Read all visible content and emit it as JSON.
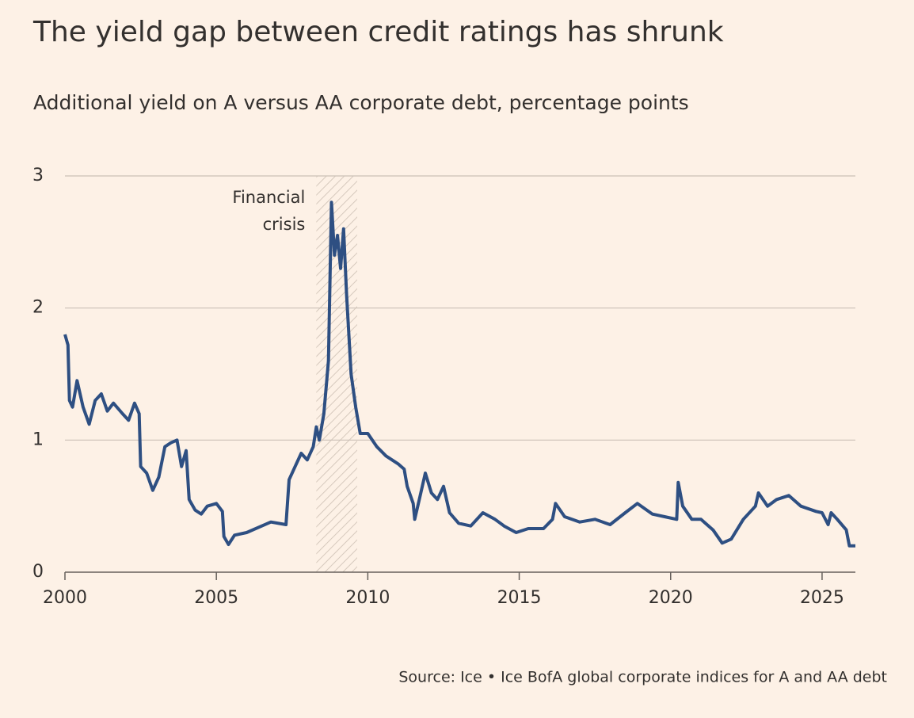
{
  "chart_data": {
    "type": "line",
    "title": "The yield gap between credit ratings has shrunk",
    "subtitle": "Additional yield on A versus AA corporate debt, percentage points",
    "source": "Source: Ice • Ice BofA global corporate indices for A and AA debt",
    "annotation": {
      "lines": [
        "Financial",
        "crisis"
      ],
      "span": [
        2008.3,
        2009.65
      ],
      "color": "#d6c9bd"
    },
    "xlim": [
      2000,
      2026.1
    ],
    "xticks": [
      2000,
      2005,
      2010,
      2015,
      2020,
      2025
    ],
    "ylim": [
      0,
      3
    ],
    "yticks": [
      0,
      1,
      2,
      3
    ],
    "grid": true,
    "x": [
      2000.0,
      2000.1,
      2000.15,
      2000.25,
      2000.4,
      2000.6,
      2000.8,
      2001.0,
      2001.2,
      2001.4,
      2001.6,
      2001.9,
      2002.1,
      2002.3,
      2002.45,
      2002.5,
      2002.7,
      2002.9,
      2003.1,
      2003.3,
      2003.5,
      2003.7,
      2003.85,
      2004.0,
      2004.1,
      2004.3,
      2004.5,
      2004.7,
      2005.0,
      2005.2,
      2005.25,
      2005.4,
      2005.6,
      2006.0,
      2006.5,
      2006.8,
      2007.3,
      2007.4,
      2007.6,
      2007.8,
      2008.0,
      2008.2,
      2008.3,
      2008.4,
      2008.55,
      2008.7,
      2008.8,
      2008.9,
      2009.0,
      2009.1,
      2009.2,
      2009.3,
      2009.45,
      2009.6,
      2009.75,
      2010.0,
      2010.3,
      2010.6,
      2011.0,
      2011.2,
      2011.3,
      2011.5,
      2011.55,
      2011.7,
      2011.9,
      2012.1,
      2012.3,
      2012.5,
      2012.7,
      2013.0,
      2013.4,
      2013.8,
      2014.2,
      2014.5,
      2014.9,
      2015.3,
      2015.8,
      2016.1,
      2016.2,
      2016.5,
      2017.0,
      2017.5,
      2018.0,
      2018.5,
      2018.9,
      2019.4,
      2019.8,
      2020.2,
      2020.25,
      2020.4,
      2020.7,
      2021.0,
      2021.4,
      2021.7,
      2022.0,
      2022.4,
      2022.8,
      2022.9,
      2023.2,
      2023.5,
      2023.9,
      2024.3,
      2024.8,
      2025.0,
      2025.2,
      2025.3,
      2025.5,
      2025.8,
      2025.9,
      2026.1
    ],
    "series": [
      {
        "color": "#2e4f82",
        "values": [
          1.8,
          1.72,
          1.3,
          1.25,
          1.45,
          1.25,
          1.12,
          1.3,
          1.35,
          1.22,
          1.28,
          1.2,
          1.15,
          1.28,
          1.2,
          0.8,
          0.75,
          0.62,
          0.72,
          0.95,
          0.98,
          1.0,
          0.8,
          0.92,
          0.55,
          0.47,
          0.44,
          0.5,
          0.52,
          0.46,
          0.27,
          0.21,
          0.28,
          0.3,
          0.35,
          0.38,
          0.36,
          0.7,
          0.8,
          0.9,
          0.85,
          0.95,
          1.1,
          1.0,
          1.2,
          1.6,
          2.8,
          2.4,
          2.55,
          2.3,
          2.6,
          2.1,
          1.5,
          1.25,
          1.05,
          1.05,
          0.95,
          0.88,
          0.82,
          0.78,
          0.65,
          0.52,
          0.4,
          0.55,
          0.75,
          0.6,
          0.55,
          0.65,
          0.45,
          0.37,
          0.35,
          0.45,
          0.4,
          0.35,
          0.3,
          0.33,
          0.33,
          0.4,
          0.52,
          0.42,
          0.38,
          0.4,
          0.36,
          0.45,
          0.52,
          0.44,
          0.42,
          0.4,
          0.68,
          0.5,
          0.4,
          0.4,
          0.32,
          0.22,
          0.25,
          0.4,
          0.5,
          0.6,
          0.5,
          0.55,
          0.58,
          0.5,
          0.46,
          0.45,
          0.36,
          0.45,
          0.4,
          0.32,
          0.2,
          0.2
        ]
      }
    ]
  }
}
